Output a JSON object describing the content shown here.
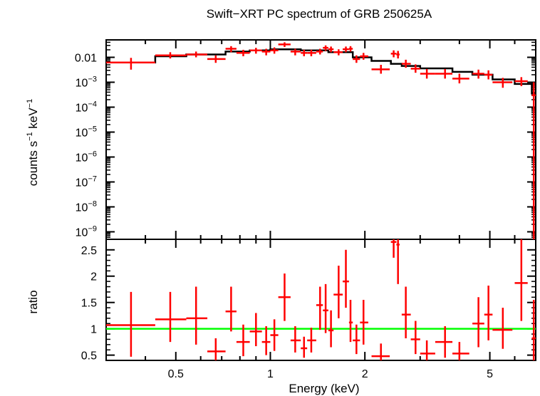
{
  "chart_data": {
    "type": "scatter",
    "title": "Swift−XRT PC spectrum of GRB 250625A",
    "xlabel": "Energy (keV)",
    "x_scale": "log",
    "xlim": [
      0.3,
      7.0
    ],
    "x_ticks": [
      {
        "value": 0.5,
        "label": "0.5"
      },
      {
        "value": 1,
        "label": "1"
      },
      {
        "value": 2,
        "label": "2"
      },
      {
        "value": 5,
        "label": "5"
      }
    ],
    "colors": {
      "data": "#ff0000",
      "model": "#000000",
      "unity": "#00ff00",
      "axes": "#000000"
    },
    "panels": [
      {
        "name": "spectrum",
        "ylabel": {
          "p1": "counts s",
          "s1": "−1",
          "p2": " keV",
          "s2": "−1"
        },
        "y_scale": "log",
        "ylim": [
          5e-10,
          0.05
        ],
        "y_ticks": [
          {
            "value": 0.01,
            "base": "0.01",
            "exp": ""
          },
          {
            "value": 0.001,
            "base": "10",
            "exp": "−3"
          },
          {
            "value": 0.0001,
            "base": "10",
            "exp": "−4"
          },
          {
            "value": 1e-05,
            "base": "10",
            "exp": "−5"
          },
          {
            "value": 1e-06,
            "base": "10",
            "exp": "−6"
          },
          {
            "value": 1e-07,
            "base": "10",
            "exp": "−7"
          },
          {
            "value": 1e-08,
            "base": "10",
            "exp": "−8"
          },
          {
            "value": 1e-09,
            "base": "10",
            "exp": "−9"
          }
        ],
        "series": [
          {
            "kind": "data",
            "points": [
              {
                "x": 0.36,
                "xlo": 0.3,
                "xhi": 0.43,
                "y": 0.0062,
                "ylo": 0.0032,
                "yhi": 0.0095
              },
              {
                "x": 0.48,
                "xlo": 0.43,
                "xhi": 0.54,
                "y": 0.012,
                "ylo": 0.009,
                "yhi": 0.016
              },
              {
                "x": 0.58,
                "xlo": 0.54,
                "xhi": 0.63,
                "y": 0.013,
                "ylo": 0.01,
                "yhi": 0.017
              },
              {
                "x": 0.67,
                "xlo": 0.63,
                "xhi": 0.72,
                "y": 0.0085,
                "ylo": 0.006,
                "yhi": 0.012
              },
              {
                "x": 0.75,
                "xlo": 0.72,
                "xhi": 0.78,
                "y": 0.022,
                "ylo": 0.016,
                "yhi": 0.028
              },
              {
                "x": 0.82,
                "xlo": 0.78,
                "xhi": 0.86,
                "y": 0.015,
                "ylo": 0.011,
                "yhi": 0.02
              },
              {
                "x": 0.9,
                "xlo": 0.86,
                "xhi": 0.94,
                "y": 0.019,
                "ylo": 0.014,
                "yhi": 0.024
              },
              {
                "x": 0.97,
                "xlo": 0.94,
                "xhi": 1.0,
                "y": 0.017,
                "ylo": 0.012,
                "yhi": 0.022
              },
              {
                "x": 1.03,
                "xlo": 1.0,
                "xhi": 1.06,
                "y": 0.019,
                "ylo": 0.014,
                "yhi": 0.025
              },
              {
                "x": 1.11,
                "xlo": 1.06,
                "xhi": 1.16,
                "y": 0.033,
                "ylo": 0.026,
                "yhi": 0.04
              },
              {
                "x": 1.2,
                "xlo": 1.16,
                "xhi": 1.25,
                "y": 0.017,
                "ylo": 0.012,
                "yhi": 0.022
              },
              {
                "x": 1.28,
                "xlo": 1.25,
                "xhi": 1.31,
                "y": 0.015,
                "ylo": 0.011,
                "yhi": 0.02
              },
              {
                "x": 1.35,
                "xlo": 1.31,
                "xhi": 1.4,
                "y": 0.015,
                "ylo": 0.011,
                "yhi": 0.02
              },
              {
                "x": 1.44,
                "xlo": 1.4,
                "xhi": 1.47,
                "y": 0.017,
                "ylo": 0.013,
                "yhi": 0.022
              },
              {
                "x": 1.5,
                "xlo": 1.47,
                "xhi": 1.53,
                "y": 0.024,
                "ylo": 0.018,
                "yhi": 0.03
              },
              {
                "x": 1.56,
                "xlo": 1.53,
                "xhi": 1.59,
                "y": 0.021,
                "ylo": 0.016,
                "yhi": 0.027
              },
              {
                "x": 1.65,
                "xlo": 1.59,
                "xhi": 1.7,
                "y": 0.016,
                "ylo": 0.012,
                "yhi": 0.021
              },
              {
                "x": 1.74,
                "xlo": 1.7,
                "xhi": 1.78,
                "y": 0.021,
                "ylo": 0.016,
                "yhi": 0.027
              },
              {
                "x": 1.8,
                "xlo": 1.78,
                "xhi": 1.83,
                "y": 0.022,
                "ylo": 0.017,
                "yhi": 0.028
              },
              {
                "x": 1.88,
                "xlo": 1.83,
                "xhi": 1.93,
                "y": 0.0085,
                "ylo": 0.006,
                "yhi": 0.012
              },
              {
                "x": 1.98,
                "xlo": 1.93,
                "xhi": 2.05,
                "y": 0.011,
                "ylo": 0.008,
                "yhi": 0.015
              },
              {
                "x": 2.25,
                "xlo": 2.1,
                "xhi": 2.4,
                "y": 0.0033,
                "ylo": 0.0022,
                "yhi": 0.005
              },
              {
                "x": 2.47,
                "xlo": 2.42,
                "xhi": 2.52,
                "y": 0.014,
                "ylo": 0.01,
                "yhi": 0.019
              },
              {
                "x": 2.55,
                "xlo": 2.52,
                "xhi": 2.58,
                "y": 0.013,
                "ylo": 0.009,
                "yhi": 0.018
              },
              {
                "x": 2.7,
                "xlo": 2.62,
                "xhi": 2.8,
                "y": 0.0055,
                "ylo": 0.0038,
                "yhi": 0.008
              },
              {
                "x": 2.9,
                "xlo": 2.8,
                "xhi": 3.0,
                "y": 0.0035,
                "ylo": 0.0024,
                "yhi": 0.0052
              },
              {
                "x": 3.15,
                "xlo": 3.0,
                "xhi": 3.35,
                "y": 0.0022,
                "ylo": 0.0014,
                "yhi": 0.0034
              },
              {
                "x": 3.6,
                "xlo": 3.35,
                "xhi": 3.8,
                "y": 0.0022,
                "ylo": 0.0014,
                "yhi": 0.0034
              },
              {
                "x": 4.0,
                "xlo": 3.8,
                "xhi": 4.3,
                "y": 0.0014,
                "ylo": 0.0009,
                "yhi": 0.0022
              },
              {
                "x": 4.6,
                "xlo": 4.4,
                "xhi": 4.8,
                "y": 0.0022,
                "ylo": 0.0014,
                "yhi": 0.0032
              },
              {
                "x": 4.95,
                "xlo": 4.8,
                "xhi": 5.1,
                "y": 0.002,
                "ylo": 0.0013,
                "yhi": 0.003
              },
              {
                "x": 5.5,
                "xlo": 5.1,
                "xhi": 5.9,
                "y": 0.001,
                "ylo": 0.0006,
                "yhi": 0.0015
              },
              {
                "x": 6.3,
                "xlo": 6.0,
                "xhi": 6.6,
                "y": 0.0011,
                "ylo": 0.0007,
                "yhi": 0.0016
              },
              {
                "x": 6.9,
                "xlo": 6.8,
                "xhi": 7.0,
                "y": 0.0003,
                "ylo": 4e-10,
                "yhi": 0.001
              }
            ]
          },
          {
            "kind": "model",
            "steps": [
              {
                "x0": 0.3,
                "x1": 0.43,
                "y": 0.0062
              },
              {
                "x0": 0.43,
                "x1": 0.54,
                "y": 0.011
              },
              {
                "x0": 0.54,
                "x1": 0.72,
                "y": 0.013
              },
              {
                "x0": 0.72,
                "x1": 0.86,
                "y": 0.017
              },
              {
                "x0": 0.86,
                "x1": 1.0,
                "y": 0.019
              },
              {
                "x0": 1.0,
                "x1": 1.25,
                "y": 0.021
              },
              {
                "x0": 1.25,
                "x1": 1.53,
                "y": 0.019
              },
              {
                "x0": 1.53,
                "x1": 1.83,
                "y": 0.016
              },
              {
                "x0": 1.83,
                "x1": 2.1,
                "y": 0.01
              },
              {
                "x0": 2.1,
                "x1": 2.42,
                "y": 0.0072
              },
              {
                "x0": 2.42,
                "x1": 2.62,
                "y": 0.0055
              },
              {
                "x0": 2.62,
                "x1": 3.0,
                "y": 0.0045
              },
              {
                "x0": 3.0,
                "x1": 3.8,
                "y": 0.0036
              },
              {
                "x0": 3.8,
                "x1": 4.4,
                "y": 0.0026
              },
              {
                "x0": 4.4,
                "x1": 5.1,
                "y": 0.002
              },
              {
                "x0": 5.1,
                "x1": 6.0,
                "y": 0.0013
              },
              {
                "x0": 6.0,
                "x1": 6.8,
                "y": 0.00085
              },
              {
                "x0": 6.8,
                "x1": 7.0,
                "y": 0.00035
              }
            ]
          }
        ]
      },
      {
        "name": "ratio",
        "ylabel": "ratio",
        "y_scale": "linear",
        "ylim": [
          0.4,
          2.7
        ],
        "y_ticks": [
          {
            "value": 0.5,
            "label": "0.5"
          },
          {
            "value": 1,
            "label": "1"
          },
          {
            "value": 1.5,
            "label": "1.5"
          },
          {
            "value": 2,
            "label": "2"
          },
          {
            "value": 2.5,
            "label": "2.5"
          }
        ],
        "unity_line": 1,
        "points": [
          {
            "x": 0.36,
            "xlo": 0.3,
            "xhi": 0.43,
            "y": 1.07,
            "ylo": 0.47,
            "yhi": 1.7
          },
          {
            "x": 0.48,
            "xlo": 0.43,
            "xhi": 0.54,
            "y": 1.18,
            "ylo": 0.75,
            "yhi": 1.7
          },
          {
            "x": 0.58,
            "xlo": 0.54,
            "xhi": 0.63,
            "y": 1.2,
            "ylo": 0.7,
            "yhi": 1.8
          },
          {
            "x": 0.67,
            "xlo": 0.63,
            "xhi": 0.72,
            "y": 0.57,
            "ylo": 0.38,
            "yhi": 0.82
          },
          {
            "x": 0.75,
            "xlo": 0.72,
            "xhi": 0.78,
            "y": 1.33,
            "ylo": 0.95,
            "yhi": 1.8
          },
          {
            "x": 0.82,
            "xlo": 0.78,
            "xhi": 0.86,
            "y": 0.75,
            "ylo": 0.48,
            "yhi": 1.08
          },
          {
            "x": 0.9,
            "xlo": 0.86,
            "xhi": 0.94,
            "y": 0.95,
            "ylo": 0.67,
            "yhi": 1.3
          },
          {
            "x": 0.97,
            "xlo": 0.94,
            "xhi": 1.0,
            "y": 0.75,
            "ylo": 0.5,
            "yhi": 1.05
          },
          {
            "x": 1.03,
            "xlo": 1.0,
            "xhi": 1.06,
            "y": 0.88,
            "ylo": 0.58,
            "yhi": 1.18
          },
          {
            "x": 1.11,
            "xlo": 1.06,
            "xhi": 1.16,
            "y": 1.6,
            "ylo": 1.15,
            "yhi": 2.05
          },
          {
            "x": 1.2,
            "xlo": 1.16,
            "xhi": 1.25,
            "y": 0.78,
            "ylo": 0.55,
            "yhi": 1.05
          },
          {
            "x": 1.28,
            "xlo": 1.25,
            "xhi": 1.31,
            "y": 0.63,
            "ylo": 0.45,
            "yhi": 0.85
          },
          {
            "x": 1.35,
            "xlo": 1.31,
            "xhi": 1.4,
            "y": 0.78,
            "ylo": 0.55,
            "yhi": 1.02
          },
          {
            "x": 1.44,
            "xlo": 1.4,
            "xhi": 1.47,
            "y": 1.45,
            "ylo": 0.98,
            "yhi": 1.8
          },
          {
            "x": 1.5,
            "xlo": 1.47,
            "xhi": 1.53,
            "y": 1.35,
            "ylo": 0.92,
            "yhi": 1.85
          },
          {
            "x": 1.56,
            "xlo": 1.53,
            "xhi": 1.59,
            "y": 0.97,
            "ylo": 0.65,
            "yhi": 1.35
          },
          {
            "x": 1.65,
            "xlo": 1.59,
            "xhi": 1.7,
            "y": 1.65,
            "ylo": 1.2,
            "yhi": 2.2
          },
          {
            "x": 1.74,
            "xlo": 1.7,
            "xhi": 1.78,
            "y": 1.9,
            "ylo": 1.4,
            "yhi": 2.5
          },
          {
            "x": 1.8,
            "xlo": 1.78,
            "xhi": 1.83,
            "y": 1.12,
            "ylo": 0.75,
            "yhi": 1.55
          },
          {
            "x": 1.88,
            "xlo": 1.83,
            "xhi": 1.93,
            "y": 0.78,
            "ylo": 0.52,
            "yhi": 1.08
          },
          {
            "x": 1.98,
            "xlo": 1.93,
            "xhi": 2.05,
            "y": 1.12,
            "ylo": 0.7,
            "yhi": 1.55
          },
          {
            "x": 2.25,
            "xlo": 2.1,
            "xhi": 2.4,
            "y": 0.48,
            "ylo": 0.3,
            "yhi": 0.72
          },
          {
            "x": 2.47,
            "xlo": 2.42,
            "xhi": 2.52,
            "y": 2.65,
            "ylo": 2.35,
            "yhi": 2.72
          },
          {
            "x": 2.55,
            "xlo": 2.52,
            "xhi": 2.58,
            "y": 2.6,
            "ylo": 1.85,
            "yhi": 2.72
          },
          {
            "x": 2.7,
            "xlo": 2.62,
            "xhi": 2.8,
            "y": 1.27,
            "ylo": 0.82,
            "yhi": 1.8
          },
          {
            "x": 2.9,
            "xlo": 2.8,
            "xhi": 3.0,
            "y": 0.8,
            "ylo": 0.52,
            "yhi": 1.15
          },
          {
            "x": 3.15,
            "xlo": 3.0,
            "xhi": 3.35,
            "y": 0.53,
            "ylo": 0.35,
            "yhi": 0.78
          },
          {
            "x": 3.6,
            "xlo": 3.35,
            "xhi": 3.8,
            "y": 0.75,
            "ylo": 0.45,
            "yhi": 1.05
          },
          {
            "x": 4.0,
            "xlo": 3.8,
            "xhi": 4.3,
            "y": 0.53,
            "ylo": 0.34,
            "yhi": 0.75
          },
          {
            "x": 4.6,
            "xlo": 4.4,
            "xhi": 4.8,
            "y": 1.1,
            "ylo": 0.65,
            "yhi": 1.6
          },
          {
            "x": 4.95,
            "xlo": 4.8,
            "xhi": 5.1,
            "y": 1.27,
            "ylo": 0.78,
            "yhi": 1.82
          },
          {
            "x": 5.5,
            "xlo": 5.1,
            "xhi": 5.9,
            "y": 0.98,
            "ylo": 0.62,
            "yhi": 1.4
          },
          {
            "x": 6.3,
            "xlo": 6.0,
            "xhi": 6.6,
            "y": 1.87,
            "ylo": 1.15,
            "yhi": 2.72
          },
          {
            "x": 6.9,
            "xlo": 6.8,
            "xhi": 7.0,
            "y": 0.82,
            "ylo": 0.4,
            "yhi": 1.55
          }
        ]
      }
    ]
  }
}
